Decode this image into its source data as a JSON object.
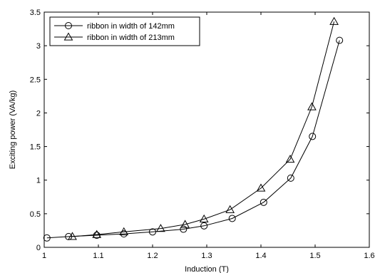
{
  "chart_data": {
    "type": "line",
    "xlabel": "Induction (T)",
    "ylabel": "Exciting power (VA/kg)",
    "xlim": [
      1,
      1.6
    ],
    "ylim": [
      0,
      3.5
    ],
    "x_ticks": [
      "1",
      "1.1",
      "1.2",
      "1.3",
      "1.4",
      "1.5",
      "1.6"
    ],
    "y_ticks": [
      "0",
      "0.5",
      "1",
      "1.5",
      "2",
      "2.5",
      "3",
      "3.5"
    ],
    "grid": false,
    "legend_position": "top-left",
    "series": [
      {
        "name": "ribbon in width of 142mm",
        "marker": "circle",
        "x": [
          1.005,
          1.045,
          1.097,
          1.147,
          1.2,
          1.257,
          1.295,
          1.347,
          1.405,
          1.455,
          1.495,
          1.545
        ],
        "y": [
          0.14,
          0.16,
          0.18,
          0.2,
          0.23,
          0.27,
          0.32,
          0.43,
          0.67,
          1.03,
          1.65,
          3.08
        ]
      },
      {
        "name": "ribbon in width of 213mm",
        "marker": "triangle",
        "x": [
          1.052,
          1.097,
          1.147,
          1.215,
          1.26,
          1.295,
          1.343,
          1.4,
          1.454,
          1.494,
          1.535
        ],
        "y": [
          0.16,
          0.19,
          0.23,
          0.28,
          0.34,
          0.42,
          0.56,
          0.88,
          1.31,
          2.09,
          3.36
        ]
      }
    ]
  }
}
